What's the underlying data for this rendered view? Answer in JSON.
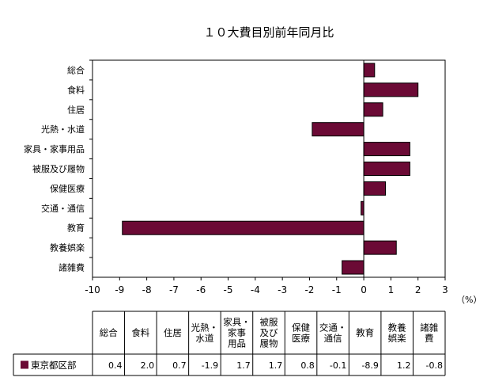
{
  "chart_data": {
    "type": "bar",
    "orientation": "horizontal",
    "title": "１０大費目別前年同月比",
    "categories": [
      "総合",
      "食料",
      "住居",
      "光熱・水道",
      "家具・家事用品",
      "被服及び履物",
      "保健医療",
      "交通・通信",
      "教育",
      "教養娯楽",
      "諸雑費"
    ],
    "series": [
      {
        "name": "東京都区部",
        "values": [
          0.4,
          2.0,
          0.7,
          -1.9,
          1.7,
          1.7,
          0.8,
          -0.1,
          -8.9,
          1.2,
          -0.8
        ],
        "color": "#6b0a35"
      }
    ],
    "xlim": [
      -10,
      3
    ],
    "xticks": [
      "-10",
      "-9",
      "-8",
      "-7",
      "-6",
      "-5",
      "-4",
      "-3",
      "-2",
      "-1",
      "0",
      "1",
      "2",
      "3"
    ],
    "unit_label": "（%）",
    "grid": false,
    "legend": "table-row",
    "table": {
      "headers": [
        [
          "総合"
        ],
        [
          "食料"
        ],
        [
          "住居"
        ],
        [
          "光熱・",
          "水道"
        ],
        [
          "家具・",
          "家事",
          "用品"
        ],
        [
          "被服",
          "及び",
          "履物"
        ],
        [
          "保健",
          "医療"
        ],
        [
          "交通・",
          "通信"
        ],
        [
          "教育"
        ],
        [
          "教養",
          "娯楽"
        ],
        [
          "諸雑",
          "費"
        ]
      ],
      "row_label": "東京都区部",
      "values": [
        "0.4",
        "2.0",
        "0.7",
        "-1.9",
        "1.7",
        "1.7",
        "0.8",
        "-0.1",
        "-8.9",
        "1.2",
        "-0.8"
      ]
    }
  }
}
